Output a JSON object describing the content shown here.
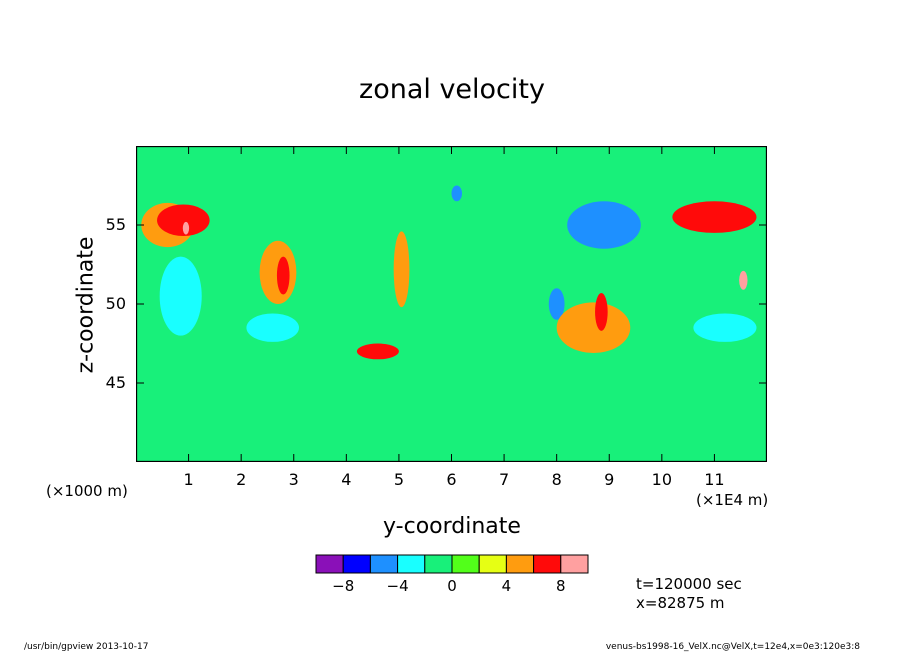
{
  "chart_data": {
    "type": "heatmap",
    "title": "zonal velocity",
    "xlabel": "y-coordinate",
    "ylabel": "z-coordinate",
    "x_multiplier": "(×1E4 m)",
    "y_multiplier": "(×1000 m)",
    "xlim": [
      0,
      12
    ],
    "ylim": [
      40,
      60
    ],
    "x_ticks": [
      "1",
      "2",
      "3",
      "4",
      "5",
      "6",
      "7",
      "8",
      "9",
      "10",
      "11"
    ],
    "y_ticks": [
      "45",
      "50",
      "55"
    ],
    "contour_levels": [
      -10,
      -8,
      -6,
      -4,
      -2,
      0,
      2,
      4,
      6,
      8,
      10
    ],
    "colorbar_colors": [
      "#8a10b8",
      "#0000ff",
      "#1e90ff",
      "#19ffff",
      "#18f07a",
      "#52ff1a",
      "#e6ff14",
      "#ff9c0f",
      "#ff0a0a",
      "#ffa0a0"
    ],
    "colorbar_labels": [
      "-8",
      "-4",
      "0",
      "4",
      "8"
    ],
    "background_level_color": "#18f07a",
    "features": [
      {
        "level": "4..6",
        "y": 0.6,
        "z": 55.0,
        "ry": 0.5,
        "rz": 1.4
      },
      {
        "level": "6..8",
        "y": 0.9,
        "z": 55.3,
        "ry": 0.5,
        "rz": 1.0
      },
      {
        "level": "8..10",
        "y": 0.95,
        "z": 54.8,
        "ry": 0.06,
        "rz": 0.4
      },
      {
        "level": "-4..-2",
        "y": 0.85,
        "z": 50.5,
        "ry": 0.4,
        "rz": 2.5
      },
      {
        "level": "-4..-2",
        "y": 2.6,
        "z": 48.5,
        "ry": 0.5,
        "rz": 0.9
      },
      {
        "level": "4..6",
        "y": 2.7,
        "z": 52.0,
        "ry": 0.35,
        "rz": 2.0
      },
      {
        "level": "6..8",
        "y": 2.8,
        "z": 51.8,
        "ry": 0.12,
        "rz": 1.2
      },
      {
        "level": "4..6",
        "y": 5.05,
        "z": 52.2,
        "ry": 0.15,
        "rz": 2.4
      },
      {
        "level": "6..8",
        "y": 4.6,
        "z": 47.0,
        "ry": 0.4,
        "rz": 0.5
      },
      {
        "level": "-6..-4",
        "y": 6.1,
        "z": 57.0,
        "ry": 0.1,
        "rz": 0.5
      },
      {
        "level": "-6..-4",
        "y": 8.9,
        "z": 55.0,
        "ry": 0.7,
        "rz": 1.5
      },
      {
        "level": "-6..-4",
        "y": 8.0,
        "z": 50.0,
        "ry": 0.15,
        "rz": 1.0
      },
      {
        "level": "4..6",
        "y": 8.7,
        "z": 48.5,
        "ry": 0.7,
        "rz": 1.6
      },
      {
        "level": "6..8",
        "y": 8.85,
        "z": 49.5,
        "ry": 0.12,
        "rz": 1.2
      },
      {
        "level": "6..8",
        "y": 11.0,
        "z": 55.5,
        "ry": 0.8,
        "rz": 1.0
      },
      {
        "level": "8..10",
        "y": 11.55,
        "z": 51.5,
        "ry": 0.08,
        "rz": 0.6
      },
      {
        "level": "-4..-2",
        "y": 11.2,
        "z": 48.5,
        "ry": 0.6,
        "rz": 0.9
      }
    ]
  },
  "info": {
    "time": "t=120000 sec",
    "position": "x=82875 m"
  },
  "footer": {
    "left": "/usr/bin/gpview   2013-10-17",
    "right": "venus-bs1998-16_VelX.nc@VelX,t=12e4,x=0e3:120e3:8"
  }
}
